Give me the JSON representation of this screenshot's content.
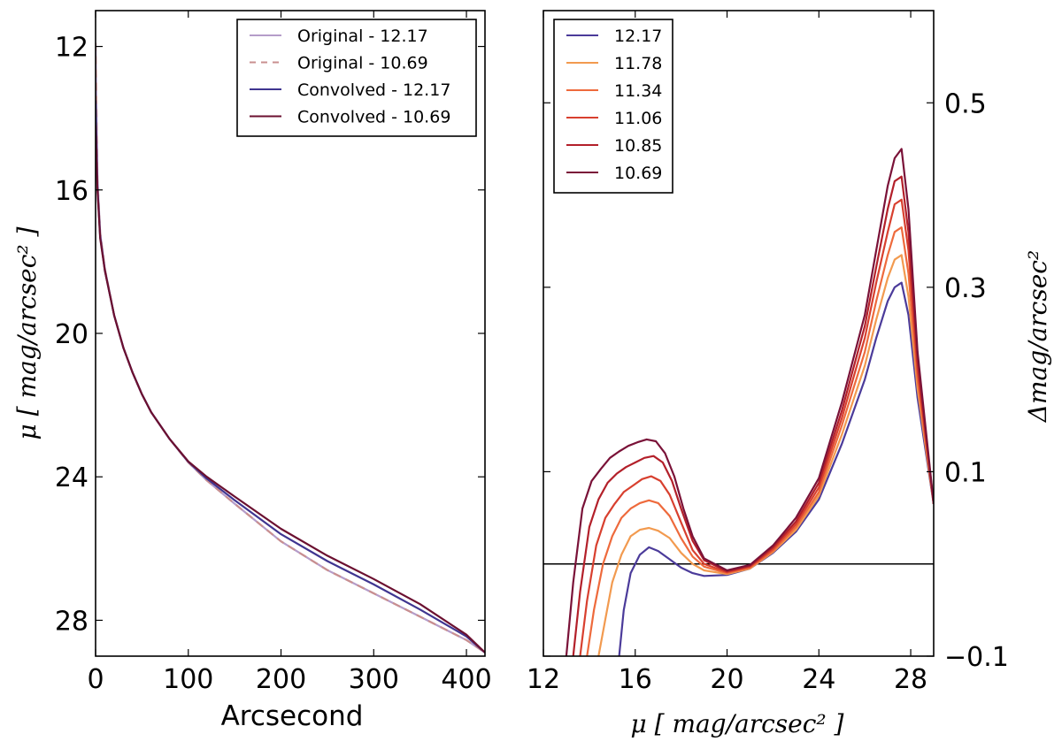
{
  "chart_data": [
    {
      "id": "left",
      "type": "line",
      "xlabel": "Arcsecond",
      "ylabel": "μ [ mag/arcsec² ]",
      "xlim": [
        0,
        420
      ],
      "ylim": [
        29,
        11
      ],
      "y_inverted": true,
      "xticks": [
        "0",
        "100",
        "200",
        "300",
        "400"
      ],
      "xtick_values": [
        0,
        100,
        200,
        300,
        400
      ],
      "yticks": [
        "12",
        "16",
        "20",
        "24",
        "28"
      ],
      "ytick_values": [
        12,
        16,
        20,
        24,
        28
      ],
      "legend_position": "top-right",
      "series": [
        {
          "name": "Original - 12.17",
          "color": "#b59cc9",
          "dash": "solid",
          "x": [
            0,
            2,
            5,
            10,
            20,
            30,
            40,
            50,
            60,
            80,
            100,
            120,
            150,
            200,
            250,
            300,
            350,
            400,
            420
          ],
          "y": [
            11.9,
            15.7,
            17.2,
            18.2,
            19.5,
            20.4,
            21.1,
            21.7,
            22.2,
            22.95,
            23.6,
            24.1,
            24.75,
            25.8,
            26.6,
            27.25,
            27.9,
            28.55,
            28.9
          ]
        },
        {
          "name": "Original - 10.69",
          "color": "#c98f8f",
          "dash": "dashed",
          "x": [
            0,
            2,
            5,
            10,
            20,
            30,
            40,
            50,
            60,
            80,
            100,
            120,
            150,
            200,
            250,
            300,
            350,
            400,
            420
          ],
          "y": [
            11.9,
            15.7,
            17.2,
            18.2,
            19.5,
            20.4,
            21.1,
            21.7,
            22.2,
            22.95,
            23.6,
            24.1,
            24.75,
            25.8,
            26.6,
            27.25,
            27.9,
            28.55,
            28.9
          ]
        },
        {
          "name": "Convolved - 12.17",
          "color": "#3f3590",
          "dash": "solid",
          "x": [
            0,
            2,
            5,
            10,
            20,
            30,
            40,
            50,
            60,
            80,
            100,
            120,
            150,
            200,
            250,
            300,
            350,
            400,
            420
          ],
          "y": [
            13.5,
            15.9,
            17.3,
            18.25,
            19.5,
            20.4,
            21.1,
            21.7,
            22.2,
            22.95,
            23.58,
            24.05,
            24.65,
            25.6,
            26.35,
            27.0,
            27.7,
            28.45,
            28.9
          ]
        },
        {
          "name": "Convolved - 10.69",
          "color": "#6b1030",
          "dash": "solid",
          "x": [
            0,
            2,
            5,
            10,
            20,
            30,
            40,
            50,
            60,
            80,
            100,
            120,
            150,
            200,
            250,
            300,
            350,
            400,
            420
          ],
          "y": [
            14.2,
            16.0,
            17.35,
            18.25,
            19.5,
            20.4,
            21.1,
            21.7,
            22.2,
            22.95,
            23.57,
            24.0,
            24.55,
            25.45,
            26.2,
            26.85,
            27.55,
            28.4,
            28.9
          ]
        }
      ]
    },
    {
      "id": "right",
      "type": "line",
      "xlabel": "μ [ mag/arcsec² ]",
      "ylabel": "Δmag/arcsec²",
      "xlim": [
        12,
        29
      ],
      "ylim": [
        -0.1,
        0.6
      ],
      "xticks": [
        "12",
        "16",
        "20",
        "24",
        "28"
      ],
      "xtick_values": [
        12,
        16,
        20,
        24,
        28
      ],
      "yticks": [
        "0.5",
        "0.3",
        "0.1",
        "−0.1"
      ],
      "ytick_values": [
        0.5,
        0.3,
        0.1,
        -0.1
      ],
      "hline": 0,
      "legend_position": "top-left",
      "series": [
        {
          "name": "12.17",
          "color": "#4b3b9a",
          "x": [
            15.3,
            15.5,
            15.8,
            16.2,
            16.6,
            17.0,
            17.5,
            18.0,
            18.5,
            19.0,
            20.0,
            21.0,
            22.0,
            23.0,
            24.0,
            25.0,
            26.0,
            26.5,
            27.0,
            27.3,
            27.6,
            27.9,
            28.3,
            29.0
          ],
          "y": [
            -0.1,
            -0.05,
            -0.01,
            0.01,
            0.018,
            0.014,
            0.005,
            -0.004,
            -0.01,
            -0.013,
            -0.012,
            -0.005,
            0.012,
            0.035,
            0.07,
            0.13,
            0.2,
            0.245,
            0.285,
            0.3,
            0.305,
            0.27,
            0.18,
            0.065
          ]
        },
        {
          "name": "11.78",
          "color": "#f29a4f",
          "x": [
            14.4,
            14.7,
            15.0,
            15.4,
            15.8,
            16.2,
            16.6,
            17.0,
            17.5,
            18.0,
            18.5,
            19.0,
            20.0,
            21.0,
            22.0,
            23.0,
            24.0,
            25.0,
            26.0,
            26.5,
            27.0,
            27.3,
            27.6,
            27.9,
            28.3,
            29.0
          ],
          "y": [
            -0.1,
            -0.06,
            -0.02,
            0.01,
            0.03,
            0.037,
            0.039,
            0.036,
            0.028,
            0.012,
            0.0,
            -0.007,
            -0.011,
            -0.005,
            0.013,
            0.037,
            0.074,
            0.14,
            0.215,
            0.265,
            0.31,
            0.33,
            0.335,
            0.29,
            0.19,
            0.065
          ]
        },
        {
          "name": "11.34",
          "color": "#ee6a3c",
          "x": [
            13.9,
            14.2,
            14.6,
            15.0,
            15.4,
            15.8,
            16.2,
            16.6,
            17.0,
            17.5,
            18.0,
            18.5,
            19.0,
            20.0,
            21.0,
            22.0,
            23.0,
            24.0,
            25.0,
            26.0,
            26.5,
            27.0,
            27.3,
            27.6,
            27.9,
            28.3,
            29.0
          ],
          "y": [
            -0.1,
            -0.05,
            0.0,
            0.03,
            0.05,
            0.06,
            0.066,
            0.069,
            0.066,
            0.052,
            0.028,
            0.008,
            -0.003,
            -0.01,
            -0.004,
            0.014,
            0.04,
            0.078,
            0.15,
            0.23,
            0.285,
            0.335,
            0.36,
            0.365,
            0.315,
            0.2,
            0.065
          ]
        },
        {
          "name": "11.06",
          "color": "#d8402f",
          "x": [
            13.6,
            13.9,
            14.3,
            14.7,
            15.1,
            15.5,
            15.9,
            16.3,
            16.7,
            17.1,
            17.5,
            18.0,
            18.5,
            19.0,
            20.0,
            21.0,
            22.0,
            23.0,
            24.0,
            25.0,
            26.0,
            26.5,
            27.0,
            27.3,
            27.6,
            27.9,
            28.3,
            29.0
          ],
          "y": [
            -0.1,
            -0.04,
            0.02,
            0.05,
            0.065,
            0.078,
            0.085,
            0.092,
            0.095,
            0.09,
            0.075,
            0.045,
            0.015,
            0.0,
            -0.009,
            -0.003,
            0.016,
            0.043,
            0.083,
            0.158,
            0.245,
            0.305,
            0.36,
            0.39,
            0.395,
            0.34,
            0.21,
            0.065
          ]
        },
        {
          "name": "10.85",
          "color": "#b3202a",
          "x": [
            13.3,
            13.6,
            14.0,
            14.4,
            14.8,
            15.2,
            15.6,
            16.0,
            16.4,
            16.8,
            17.2,
            17.6,
            18.0,
            18.5,
            19.0,
            20.0,
            21.0,
            22.0,
            23.0,
            24.0,
            25.0,
            26.0,
            26.5,
            27.0,
            27.3,
            27.6,
            27.9,
            28.3,
            29.0
          ],
          "y": [
            -0.1,
            -0.03,
            0.04,
            0.07,
            0.088,
            0.098,
            0.105,
            0.11,
            0.115,
            0.117,
            0.11,
            0.09,
            0.06,
            0.025,
            0.004,
            -0.008,
            -0.002,
            0.018,
            0.046,
            0.088,
            0.166,
            0.258,
            0.322,
            0.385,
            0.415,
            0.42,
            0.36,
            0.22,
            0.065
          ]
        },
        {
          "name": "10.69",
          "color": "#7a1238",
          "x": [
            13.0,
            13.3,
            13.7,
            14.1,
            14.5,
            14.9,
            15.3,
            15.7,
            16.1,
            16.5,
            16.9,
            17.3,
            17.7,
            18.1,
            18.5,
            19.0,
            20.0,
            21.0,
            22.0,
            23.0,
            24.0,
            25.0,
            26.0,
            26.5,
            27.0,
            27.3,
            27.6,
            27.9,
            28.3,
            29.0
          ],
          "y": [
            -0.1,
            -0.02,
            0.06,
            0.09,
            0.103,
            0.115,
            0.122,
            0.128,
            0.132,
            0.135,
            0.133,
            0.12,
            0.095,
            0.06,
            0.03,
            0.006,
            -0.007,
            -0.001,
            0.02,
            0.05,
            0.093,
            0.175,
            0.27,
            0.34,
            0.41,
            0.44,
            0.45,
            0.385,
            0.23,
            0.065
          ]
        }
      ]
    }
  ]
}
